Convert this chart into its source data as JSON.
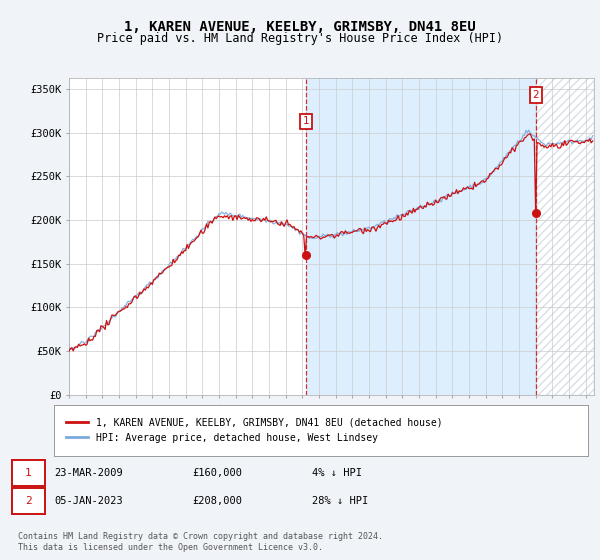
{
  "title": "1, KAREN AVENUE, KEELBY, GRIMSBY, DN41 8EU",
  "subtitle": "Price paid vs. HM Land Registry's House Price Index (HPI)",
  "ylabel_ticks": [
    "£0",
    "£50K",
    "£100K",
    "£150K",
    "£200K",
    "£250K",
    "£300K",
    "£350K"
  ],
  "ytick_vals": [
    0,
    50000,
    100000,
    150000,
    200000,
    250000,
    300000,
    350000
  ],
  "ylim": [
    0,
    362000
  ],
  "xlim_start": 1995.0,
  "xlim_end": 2026.5,
  "hpi_color": "#7aaadd",
  "price_color": "#cc1111",
  "marker1_date": 2009.2,
  "marker2_date": 2023.02,
  "marker1_price": 160000,
  "marker2_price": 208000,
  "legend_line1": "1, KAREN AVENUE, KEELBY, GRIMSBY, DN41 8EU (detached house)",
  "legend_line2": "HPI: Average price, detached house, West Lindsey",
  "footer1": "Contains HM Land Registry data © Crown copyright and database right 2024.",
  "footer2": "This data is licensed under the Open Government Licence v3.0.",
  "background_color": "#f0f4f8",
  "plot_bg_color": "#ffffff",
  "shade_color": "#ddeeff",
  "hatch_color": "#ccddee"
}
